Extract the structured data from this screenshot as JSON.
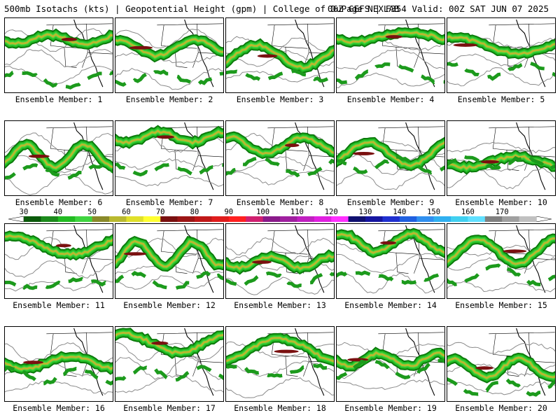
{
  "header": {
    "title": "500mb Isotachs (kts) | Geopotential Height (gpm) | College of DuPage NEXLAB",
    "run_info": "06Z GEFS | F354 Valid: 00Z SAT JUN 07 2025"
  },
  "colorbar": {
    "ticks": [
      "30",
      "40",
      "50",
      "60",
      "70",
      "80",
      "90",
      "100",
      "110",
      "120",
      "130",
      "140",
      "150",
      "160",
      "170"
    ],
    "colors": [
      "#0b5a0b",
      "#1c8a1c",
      "#22bb22",
      "#3fd43f",
      "#8a8a2a",
      "#b9b92f",
      "#e0e02a",
      "#ffff30",
      "#7a1010",
      "#9c1515",
      "#c01818",
      "#e01c1c",
      "#ff2020",
      "#d02070",
      "#8a1a8a",
      "#a020a0",
      "#c020c0",
      "#e020e0",
      "#ff30ff",
      "#101070",
      "#1515a0",
      "#2030d0",
      "#2060e0",
      "#3090f0",
      "#30b0f0",
      "#40d0f0",
      "#60e0ff",
      "#808080",
      "#a0a0a0",
      "#c0c0c0"
    ]
  },
  "members": [
    {
      "label": "Ensemble Member: 1"
    },
    {
      "label": "Ensemble Member: 2"
    },
    {
      "label": "Ensemble Member: 3"
    },
    {
      "label": "Ensemble Member: 4"
    },
    {
      "label": "Ensemble Member: 5"
    },
    {
      "label": "Ensemble Member: 6"
    },
    {
      "label": "Ensemble Member: 7"
    },
    {
      "label": "Ensemble Member: 8"
    },
    {
      "label": "Ensemble Member: 9"
    },
    {
      "label": "Ensemble Member: 10"
    },
    {
      "label": "Ensemble Member: 11"
    },
    {
      "label": "Ensemble Member: 12"
    },
    {
      "label": "Ensemble Member: 13"
    },
    {
      "label": "Ensemble Member: 14"
    },
    {
      "label": "Ensemble Member: 15"
    },
    {
      "label": "Ensemble Member: 16"
    },
    {
      "label": "Ensemble Member: 17"
    },
    {
      "label": "Ensemble Member: 18"
    },
    {
      "label": "Ensemble Member: 19"
    },
    {
      "label": "Ensemble Member: 20"
    }
  ]
}
